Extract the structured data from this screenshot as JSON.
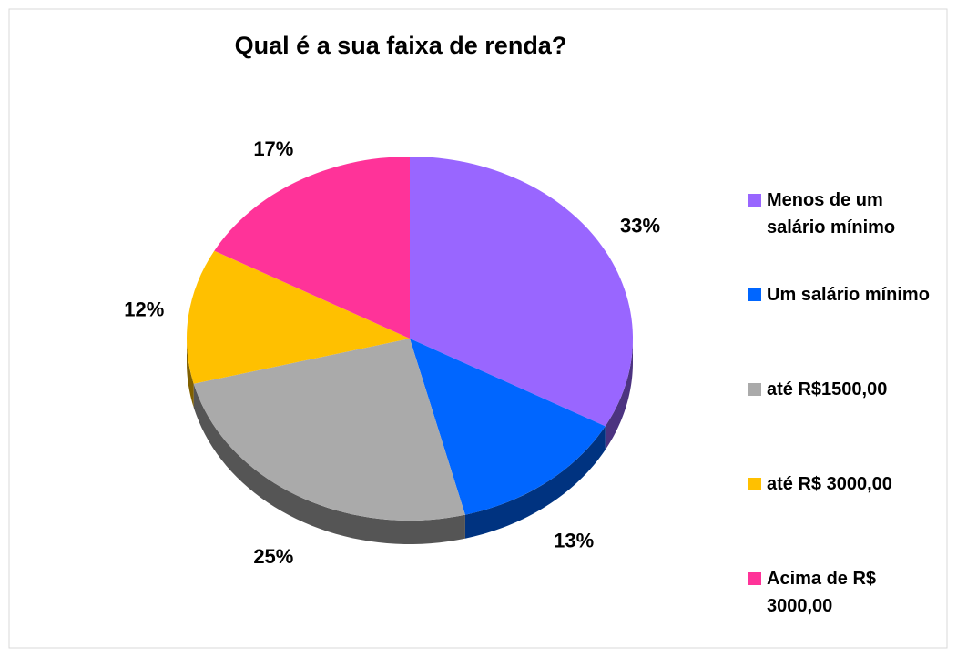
{
  "chart_data": {
    "type": "pie",
    "title": "Qual é a sua faixa de renda?",
    "categories": [
      "Menos de um salário mínimo",
      "Um salário mínimo",
      "até R$1500,00",
      "até R$ 3000,00",
      "Acima de R$ 3000,00"
    ],
    "values": [
      33,
      13,
      25,
      12,
      17
    ],
    "value_labels": [
      "33%",
      "13%",
      "25%",
      "12%",
      "17%"
    ],
    "colors": [
      "#9966ff",
      "#0066ff",
      "#aaaaaa",
      "#ffc000",
      "#ff3399"
    ],
    "legend": "right"
  }
}
